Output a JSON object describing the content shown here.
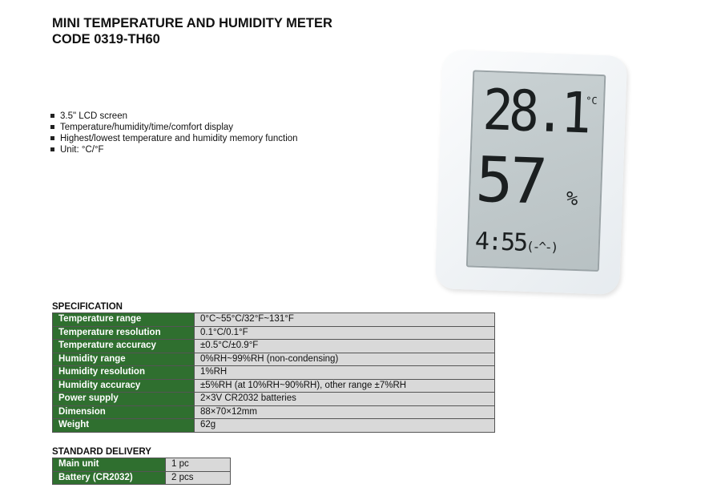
{
  "header": {
    "title_line1": "MINI TEMPERATURE AND HUMIDITY METER",
    "title_line2": "CODE 0319-TH60"
  },
  "features": [
    "3.5\" LCD screen",
    "Temperature/humidity/time/comfort display",
    "Highest/lowest temperature and humidity memory function",
    "Unit: °C/°F"
  ],
  "product_image": {
    "temperature": "28.1",
    "temp_unit": "°C",
    "humidity": "57",
    "humidity_unit": "%",
    "time": "4:55",
    "comfort": "(-^-)"
  },
  "specification": {
    "heading": "SPECIFICATION",
    "rows": [
      {
        "label": "Temperature range",
        "value": "0°C~55°C/32°F~131°F"
      },
      {
        "label": "Temperature resolution",
        "value": "0.1°C/0.1°F"
      },
      {
        "label": "Temperature accuracy",
        "value": "±0.5°C/±0.9°F"
      },
      {
        "label": "Humidity range",
        "value": "0%RH~99%RH (non-condensing)"
      },
      {
        "label": "Humidity resolution",
        "value": "1%RH"
      },
      {
        "label": "Humidity accuracy",
        "value": "±5%RH (at 10%RH~90%RH), other range ±7%RH"
      },
      {
        "label": "Power supply",
        "value": "2×3V CR2032 batteries"
      },
      {
        "label": "Dimension",
        "value": "88×70×12mm"
      },
      {
        "label": "Weight",
        "value": "62g"
      }
    ]
  },
  "delivery": {
    "heading": "STANDARD DELIVERY",
    "rows": [
      {
        "label": "Main unit",
        "value": "1 pc"
      },
      {
        "label": "Battery (CR2032)",
        "value": "2 pcs"
      }
    ]
  },
  "colors": {
    "label_bg": "#2f6f2f",
    "value_bg": "#d9d9d9"
  }
}
